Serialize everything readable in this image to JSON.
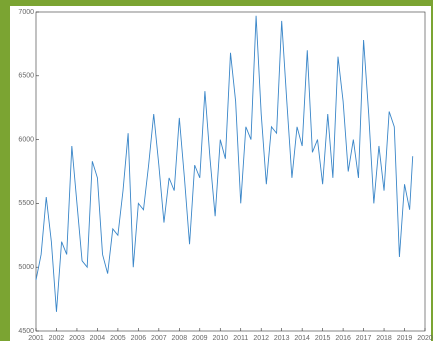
{
  "chart_data": {
    "type": "line",
    "x": [
      2001,
      2001.25,
      2001.5,
      2001.75,
      2002,
      2002.25,
      2002.5,
      2002.75,
      2003,
      2003.25,
      2003.5,
      2003.75,
      2004,
      2004.25,
      2004.5,
      2004.75,
      2005,
      2005.25,
      2005.5,
      2005.75,
      2006,
      2006.25,
      2006.5,
      2006.75,
      2007,
      2007.25,
      2007.5,
      2007.75,
      2008,
      2008.25,
      2008.5,
      2008.75,
      2009,
      2009.25,
      2009.5,
      2009.75,
      2010,
      2010.25,
      2010.5,
      2010.75,
      2011,
      2011.25,
      2011.5,
      2011.75,
      2012,
      2012.25,
      2012.5,
      2012.75,
      2013,
      2013.25,
      2013.5,
      2013.75,
      2014,
      2014.25,
      2014.5,
      2014.75,
      2015,
      2015.25,
      2015.5,
      2015.75,
      2016,
      2016.25,
      2016.5,
      2016.75,
      2017,
      2017.25,
      2017.5,
      2017.75,
      2018,
      2018.25,
      2018.5,
      2018.75,
      2019,
      2019.25,
      2019.4
    ],
    "series": [
      {
        "color": "#3a86c8",
        "values": [
          4900,
          5100,
          5550,
          5200,
          4650,
          5200,
          5100,
          5950,
          5500,
          5050,
          5000,
          5830,
          5700,
          5100,
          4950,
          5300,
          5250,
          5600,
          6050,
          5000,
          5500,
          5450,
          5800,
          6200,
          5800,
          5350,
          5700,
          5600,
          6170,
          5700,
          5180,
          5800,
          5700,
          6380,
          5850,
          5400,
          6000,
          5850,
          6680,
          6300,
          5500,
          6100,
          6000,
          6970,
          6200,
          5650,
          6100,
          6050,
          6930,
          6300,
          5700,
          6100,
          5950,
          6700,
          5900,
          6000,
          5650,
          6200,
          5700,
          6650,
          6300,
          5750,
          6000,
          5700,
          6780,
          6200,
          5500,
          5950,
          5600,
          6220,
          6100,
          5080,
          5650,
          5450,
          5870
        ]
      }
    ],
    "xlim": [
      2001,
      2020
    ],
    "xticks": [
      2001,
      2002,
      2003,
      2004,
      2005,
      2006,
      2007,
      2008,
      2009,
      2010,
      2011,
      2012,
      2013,
      2014,
      2015,
      2016,
      2017,
      2018,
      2019,
      2020
    ],
    "ylim": [
      4500,
      7000
    ],
    "yticks": [
      4500,
      5000,
      5500,
      6000,
      6500,
      7000
    ]
  }
}
